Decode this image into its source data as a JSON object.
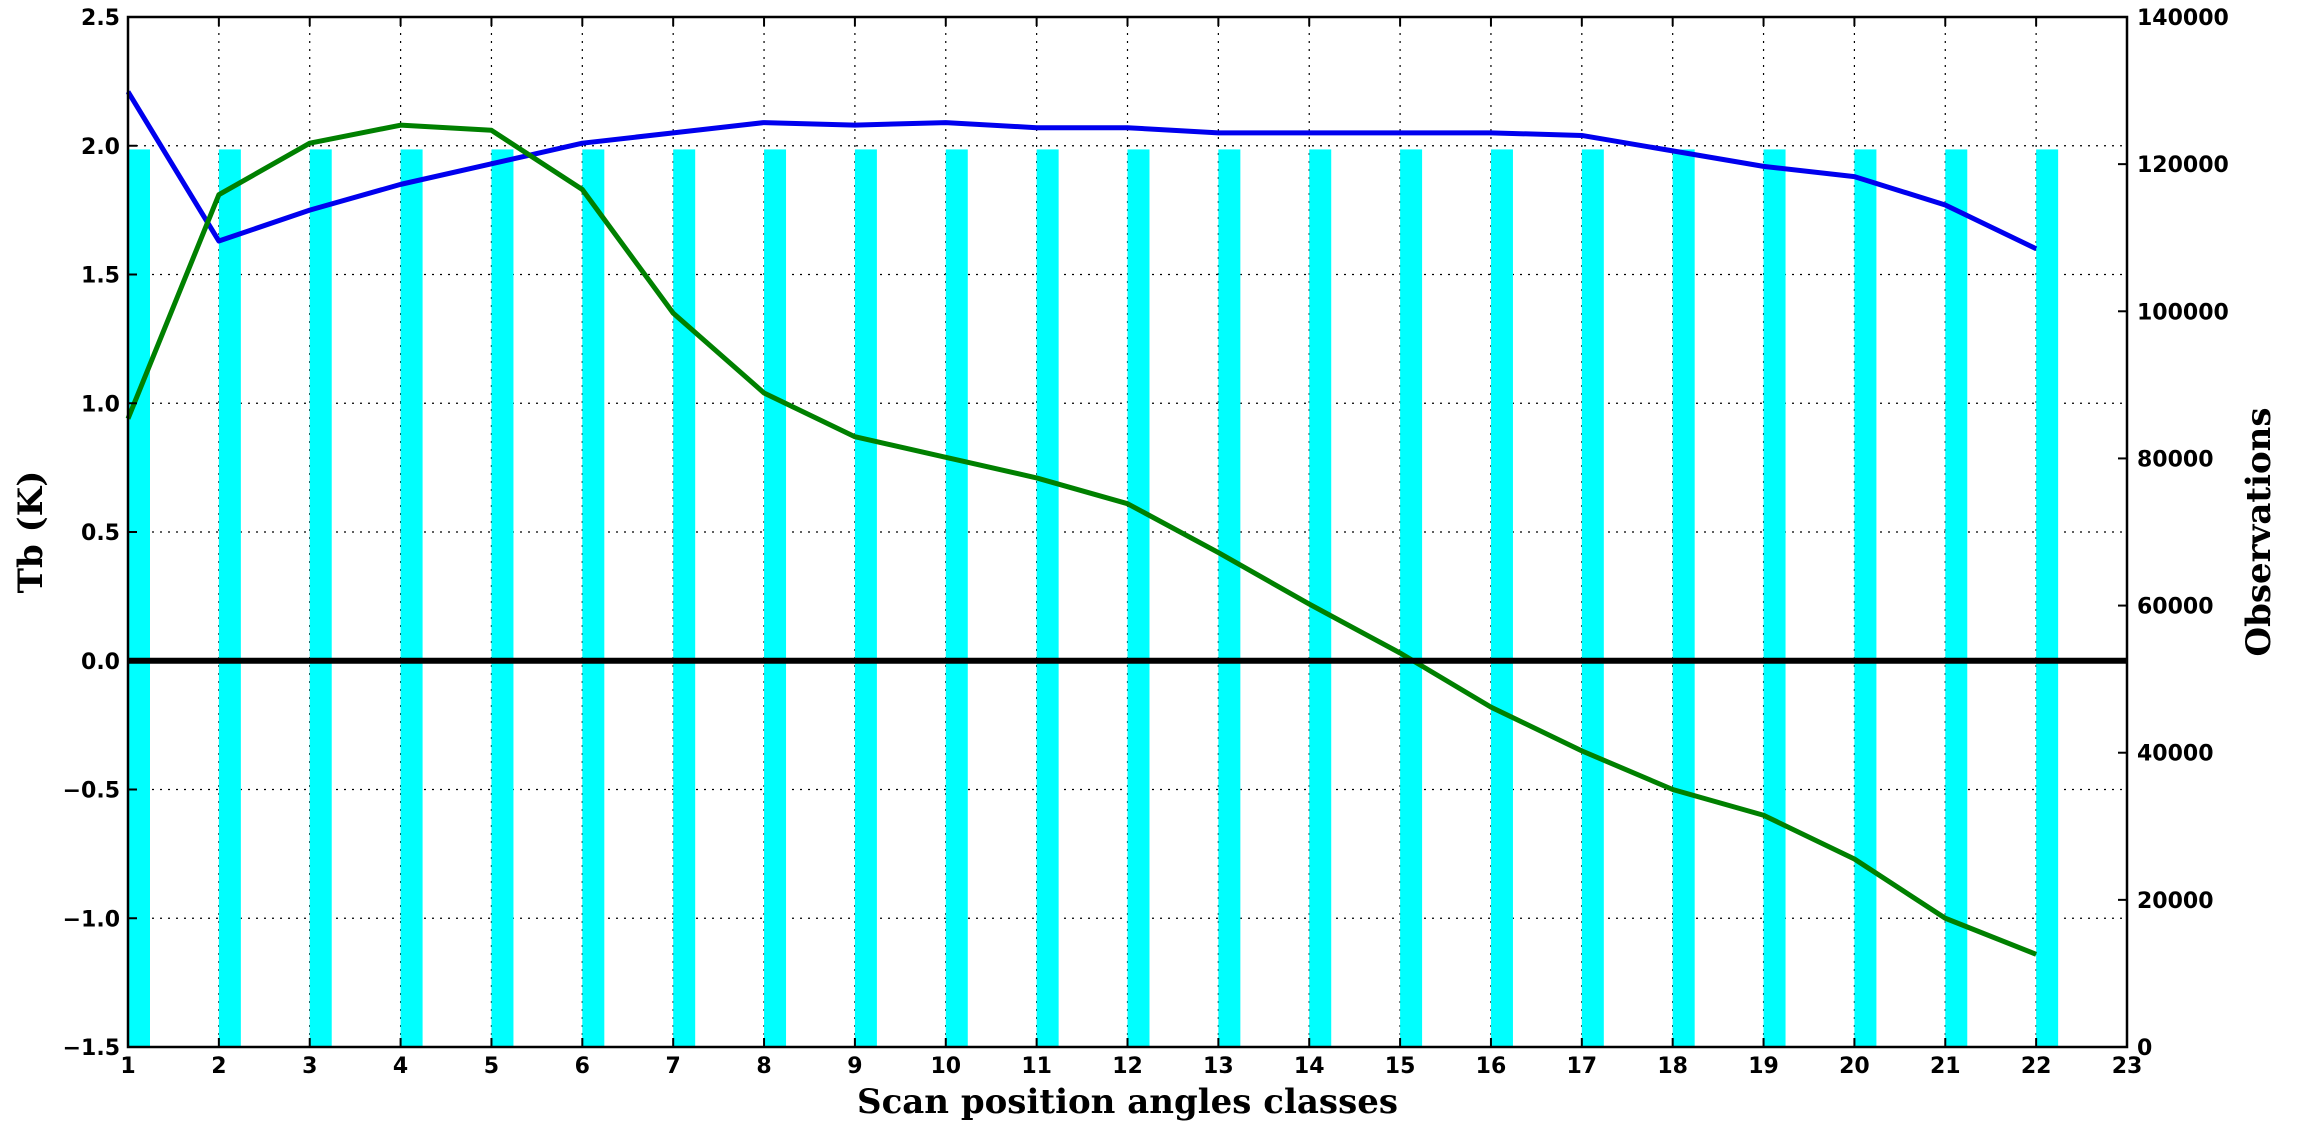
{
  "chart_data": {
    "type": "bar",
    "xlabel": "Scan position angles classes",
    "ylabel": "Tb (K)",
    "ylabel_right": "Observations",
    "xlim": [
      1,
      23
    ],
    "xticks": [
      1,
      2,
      3,
      4,
      5,
      6,
      7,
      8,
      9,
      10,
      11,
      12,
      13,
      14,
      15,
      16,
      17,
      18,
      19,
      20,
      21,
      22,
      23
    ],
    "ylim": [
      -1.5,
      2.5
    ],
    "yticks": [
      -1.5,
      -1.0,
      -0.5,
      0.0,
      0.5,
      1.0,
      1.5,
      2.0,
      2.5
    ],
    "ytick_labels": [
      "−1.5",
      "−1.0",
      "−0.5",
      "0.0",
      "0.5",
      "1.0",
      "1.5",
      "2.0",
      "2.5"
    ],
    "ylim_right": [
      0,
      140000
    ],
    "yticks_right": [
      0,
      20000,
      40000,
      60000,
      80000,
      100000,
      120000,
      140000
    ],
    "ytick_labels_right": [
      "0",
      "20000",
      "40000",
      "60000",
      "80000",
      "100000",
      "120000",
      "140000"
    ],
    "grid": true,
    "reference_line_y": 0.0,
    "bars": {
      "axis": "right",
      "color": "#00ffff",
      "x": [
        1,
        2,
        3,
        4,
        5,
        6,
        7,
        8,
        9,
        10,
        11,
        12,
        13,
        14,
        15,
        16,
        17,
        18,
        19,
        20,
        21,
        22
      ],
      "values": [
        122000,
        122000,
        122000,
        122000,
        122000,
        122000,
        122000,
        122000,
        122000,
        122000,
        122000,
        122000,
        122000,
        122000,
        122000,
        122000,
        122000,
        122000,
        122000,
        122000,
        122000,
        122000
      ]
    },
    "series": [
      {
        "color": "#0000ee",
        "axis": "left",
        "x": [
          1,
          2,
          3,
          4,
          5,
          6,
          7,
          8,
          9,
          10,
          11,
          12,
          13,
          14,
          15,
          16,
          17,
          18,
          19,
          20,
          21,
          22
        ],
        "values": [
          2.21,
          1.63,
          1.75,
          1.85,
          1.93,
          2.01,
          2.05,
          2.09,
          2.08,
          2.09,
          2.07,
          2.07,
          2.05,
          2.05,
          2.05,
          2.05,
          2.04,
          1.98,
          1.92,
          1.88,
          1.77,
          1.6
        ]
      },
      {
        "color": "#008000",
        "axis": "left",
        "x": [
          1,
          2,
          3,
          4,
          5,
          6,
          7,
          8,
          9,
          10,
          11,
          12,
          13,
          14,
          15,
          16,
          17,
          18,
          19,
          20,
          21,
          22
        ],
        "values": [
          0.94,
          1.81,
          2.01,
          2.08,
          2.06,
          1.83,
          1.35,
          1.04,
          0.87,
          0.79,
          0.71,
          0.61,
          0.42,
          0.22,
          0.03,
          -0.18,
          -0.35,
          -0.5,
          -0.6,
          -0.77,
          -1.0,
          -1.14
        ]
      }
    ]
  }
}
